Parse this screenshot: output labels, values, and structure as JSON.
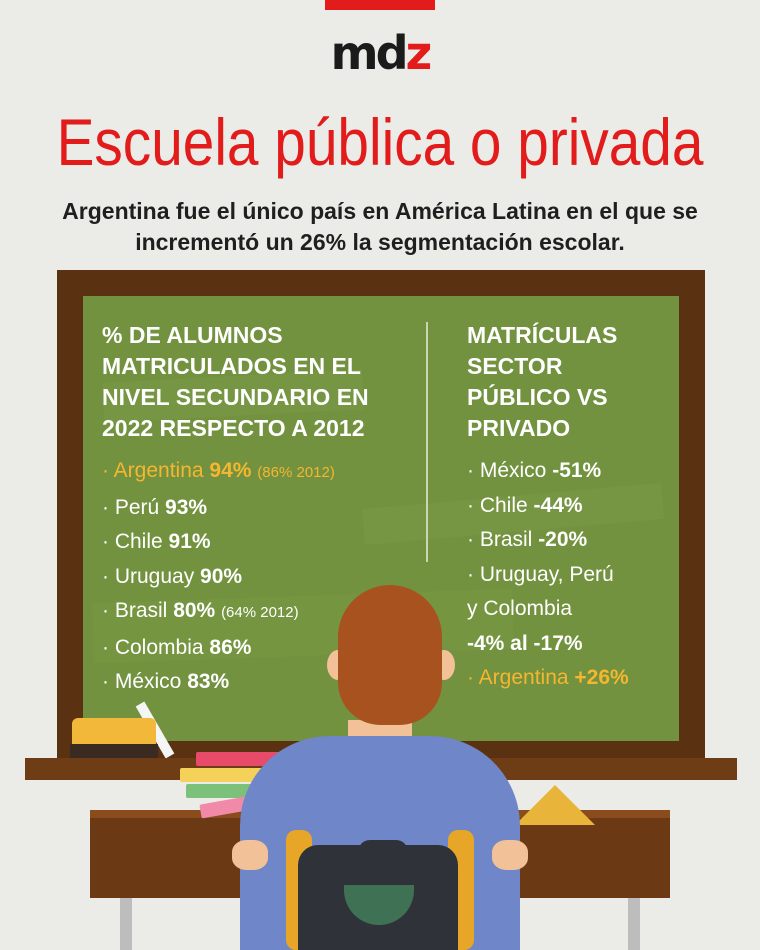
{
  "brand": {
    "logo_main": "md",
    "logo_accent": "z",
    "accent_color": "#e21b1b"
  },
  "title": "Escuela pública o privada",
  "subtitle": "Argentina fue el único país en América Latina en el que se incrementó un 26% la segmentación escolar.",
  "left_column": {
    "heading": "% DE ALUMNOS MATRICULADOS EN EL NIVEL SECUNDARIO EN 2022 RESPECTO A  2012",
    "items": [
      {
        "country": "· Argentina",
        "value": "94%",
        "note": "(86% 2012)",
        "highlight": true
      },
      {
        "country": "· Perú",
        "value": "93%",
        "note": ""
      },
      {
        "country": "· Chile",
        "value": "91%",
        "note": ""
      },
      {
        "country": "· Uruguay",
        "value": "90%",
        "note": ""
      },
      {
        "country": "· Brasil",
        "value": "80%",
        "note": "(64% 2012)"
      },
      {
        "country": "· Colombia",
        "value": "86%",
        "note": ""
      },
      {
        "country": "· México",
        "value": "83%",
        "note": ""
      }
    ]
  },
  "right_column": {
    "heading": "MATRÍCULAS SECTOR PÚBLICO VS PRIVADO",
    "items": [
      {
        "label": "· México",
        "value": "-51%"
      },
      {
        "label": "· Chile",
        "value": "-44%"
      },
      {
        "label": "· Brasil",
        "value": "-20%"
      },
      {
        "label": "· Uruguay, Perú",
        "value": ""
      },
      {
        "label": "y Colombia",
        "value": ""
      },
      {
        "label": "",
        "value": "-4% al -17%"
      },
      {
        "label": "· Argentina",
        "value": "+26%",
        "highlight": true
      }
    ]
  },
  "colors": {
    "board": "#72923f",
    "frame": "#5a3212",
    "highlight": "#f5b630",
    "background": "#ebebe7"
  }
}
